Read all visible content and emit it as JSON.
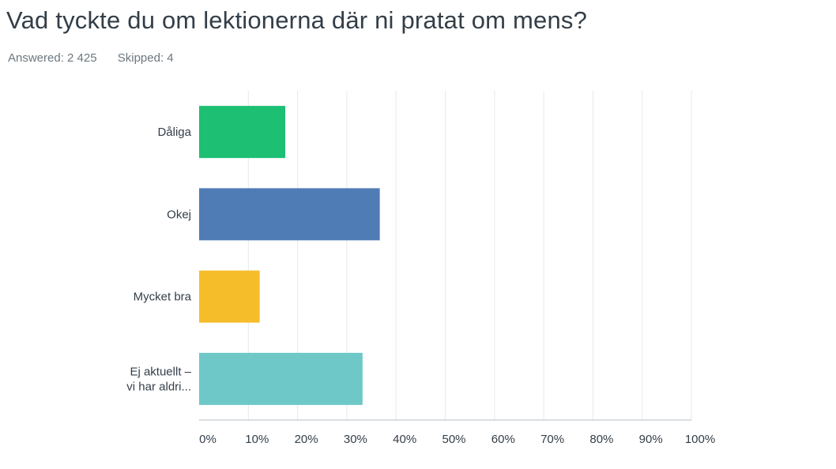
{
  "question": {
    "title": "Vad tyckte du om lektionerna där ni pratat om mens?",
    "answered": "Answered: 2 425",
    "skipped": "Skipped: 4"
  },
  "chart_data": {
    "type": "bar",
    "orientation": "horizontal",
    "categories": [
      "Dåliga",
      "Okej",
      "Mycket bra",
      "Ej aktuellt – vi har aldri..."
    ],
    "category_lines": [
      [
        "Dåliga"
      ],
      [
        "Okej"
      ],
      [
        "Mycket bra"
      ],
      [
        "Ej aktuellt –",
        "vi har aldri..."
      ]
    ],
    "values": [
      17.5,
      36.7,
      12.3,
      33.2
    ],
    "colors": [
      "#1dbf73",
      "#507cb6",
      "#f6bd2b",
      "#6fc8c8"
    ],
    "xlim": [
      0,
      100
    ],
    "x_ticks": [
      "0%",
      "10%",
      "20%",
      "30%",
      "40%",
      "50%",
      "60%",
      "70%",
      "80%",
      "90%",
      "100%"
    ],
    "grid": true,
    "xlabel": "",
    "ylabel": ""
  }
}
